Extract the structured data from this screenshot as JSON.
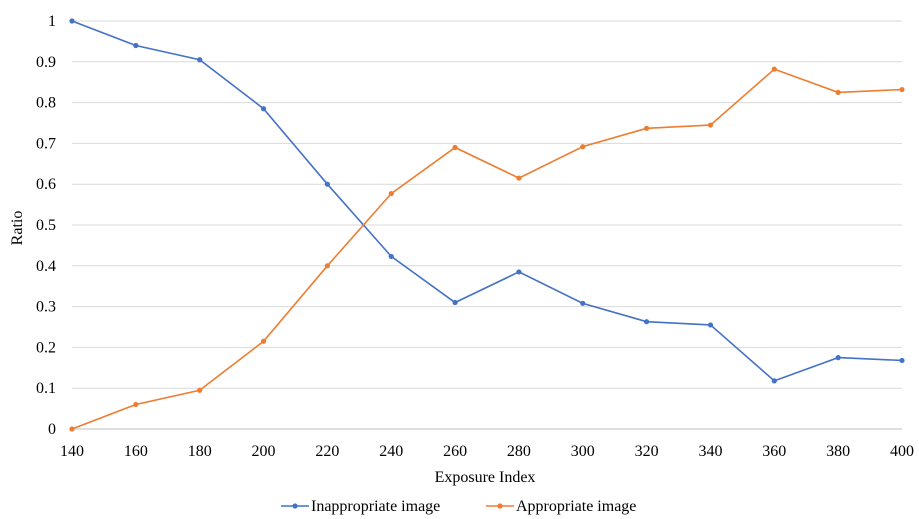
{
  "chart_data": {
    "type": "line",
    "xlabel": "Exposure Index",
    "ylabel": "Ratio",
    "x": [
      140,
      160,
      180,
      200,
      220,
      240,
      260,
      280,
      300,
      320,
      340,
      360,
      380,
      400
    ],
    "xlim": [
      140,
      400
    ],
    "ylim": [
      0,
      1
    ],
    "xticks": [
      "140",
      "160",
      "180",
      "200",
      "220",
      "240",
      "260",
      "280",
      "300",
      "320",
      "340",
      "360",
      "380",
      "400"
    ],
    "yticks": [
      "0",
      "0.1",
      "0.2",
      "0.3",
      "0.4",
      "0.5",
      "0.6",
      "0.7",
      "0.8",
      "0.9",
      "1"
    ],
    "grid": "horizontal",
    "legend_position": "bottom",
    "series": [
      {
        "name": "Inappropriate image",
        "color": "#4472c4",
        "values": [
          1.0,
          0.94,
          0.905,
          0.785,
          0.6,
          0.423,
          0.31,
          0.385,
          0.308,
          0.263,
          0.255,
          0.118,
          0.175,
          0.168
        ]
      },
      {
        "name": "Appropriate image",
        "color": "#ed7d31",
        "values": [
          0.0,
          0.06,
          0.095,
          0.215,
          0.4,
          0.577,
          0.69,
          0.615,
          0.692,
          0.737,
          0.745,
          0.882,
          0.825,
          0.832
        ]
      }
    ]
  }
}
